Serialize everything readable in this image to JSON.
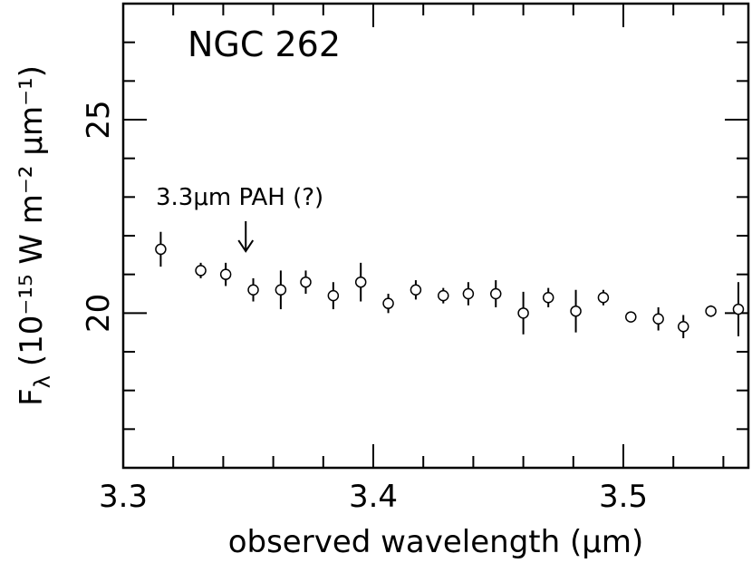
{
  "chart_data": {
    "type": "scatter",
    "title": "NGC 262",
    "xlabel": "observed wavelength (μm)",
    "ylabel_main": "F",
    "ylabel_sub": "λ",
    "ylabel_units": "(10⁻¹⁵ W m⁻² μm⁻¹)",
    "xlim": [
      3.3,
      3.55
    ],
    "ylim": [
      16,
      28
    ],
    "x_ticks": [
      3.3,
      3.4,
      3.5
    ],
    "y_ticks": [
      20,
      25
    ],
    "x_minor_step": 0.02,
    "y_minor_step": 1,
    "annotation": {
      "text": "3.3μm PAH (?)",
      "x": 3.349,
      "y_arrow_tip": 21.6
    },
    "series": [
      {
        "marker": "open-circle",
        "x": [
          3.315,
          3.331,
          3.341,
          3.352,
          3.363,
          3.373,
          3.384,
          3.395,
          3.406,
          3.417,
          3.428,
          3.438,
          3.449,
          3.46,
          3.47,
          3.481,
          3.492,
          3.503,
          3.514,
          3.524,
          3.535,
          3.546
        ],
        "y": [
          21.65,
          21.1,
          21.0,
          20.6,
          20.6,
          20.8,
          20.45,
          20.8,
          20.25,
          20.6,
          20.45,
          20.5,
          20.5,
          20.0,
          20.4,
          20.05,
          20.4,
          19.9,
          19.85,
          19.65,
          20.05,
          20.1
        ],
        "yerr": [
          0.45,
          0.2,
          0.3,
          0.3,
          0.5,
          0.3,
          0.35,
          0.5,
          0.25,
          0.25,
          0.2,
          0.3,
          0.35,
          0.55,
          0.25,
          0.55,
          0.2,
          0.12,
          0.3,
          0.3,
          0.15,
          0.7
        ]
      }
    ]
  }
}
